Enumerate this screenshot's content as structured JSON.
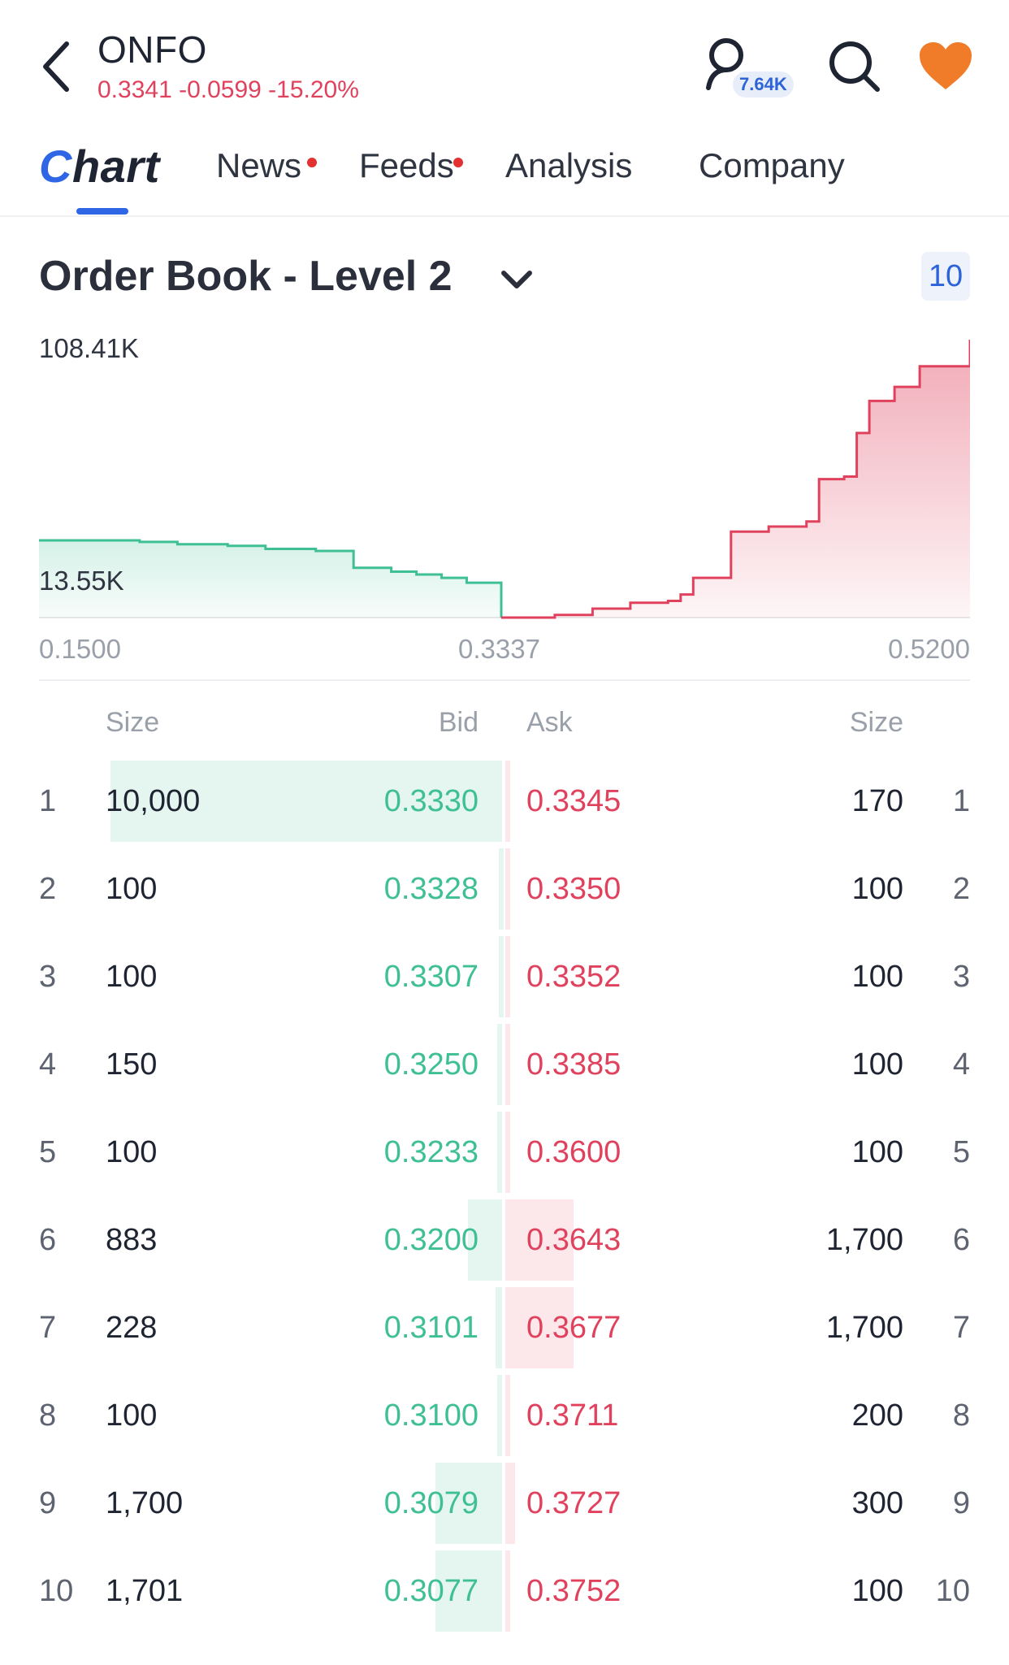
{
  "header": {
    "ticker": "ONFO",
    "quote": "0.3341 -0.0599 -15.20%",
    "follower_count": "7.64K",
    "icons": {
      "back": "chevron-left-icon",
      "follow": "user-icon",
      "search": "search-icon",
      "watchlist": "heart-icon"
    },
    "colors": {
      "negative": "#e0425e",
      "heart": "#f07c2a",
      "accent": "#2f66e6"
    }
  },
  "tabs": [
    {
      "label": "Chart",
      "active": true,
      "dot": false
    },
    {
      "label": "News",
      "active": false,
      "dot": true
    },
    {
      "label": "Feeds",
      "active": false,
      "dot": true
    },
    {
      "label": "Analysis",
      "active": false,
      "dot": false
    },
    {
      "label": "Company",
      "active": false,
      "dot": false
    }
  ],
  "order_book": {
    "title": "Order Book - Level 2",
    "level": "10",
    "headers": {
      "bid_size": "Size",
      "bid": "Bid",
      "ask": "Ask",
      "ask_size": "Size"
    },
    "rows": [
      {
        "n": "1",
        "bid_size": "10,000",
        "bid": "0.3330",
        "ask": "0.3345",
        "ask_size": "170"
      },
      {
        "n": "2",
        "bid_size": "100",
        "bid": "0.3328",
        "ask": "0.3350",
        "ask_size": "100"
      },
      {
        "n": "3",
        "bid_size": "100",
        "bid": "0.3307",
        "ask": "0.3352",
        "ask_size": "100"
      },
      {
        "n": "4",
        "bid_size": "150",
        "bid": "0.3250",
        "ask": "0.3385",
        "ask_size": "100"
      },
      {
        "n": "5",
        "bid_size": "100",
        "bid": "0.3233",
        "ask": "0.3600",
        "ask_size": "100"
      },
      {
        "n": "6",
        "bid_size": "883",
        "bid": "0.3200",
        "ask": "0.3643",
        "ask_size": "1,700"
      },
      {
        "n": "7",
        "bid_size": "228",
        "bid": "0.3101",
        "ask": "0.3677",
        "ask_size": "1,700"
      },
      {
        "n": "8",
        "bid_size": "100",
        "bid": "0.3100",
        "ask": "0.3711",
        "ask_size": "200"
      },
      {
        "n": "9",
        "bid_size": "1,700",
        "bid": "0.3079",
        "ask": "0.3727",
        "ask_size": "300"
      },
      {
        "n": "10",
        "bid_size": "1,701",
        "bid": "0.3077",
        "ask": "0.3752",
        "ask_size": "100"
      }
    ]
  },
  "chart_data": {
    "type": "area",
    "y_max_label": "108.41K",
    "y_mid_label": "13.55K",
    "x_ticks": [
      "0.1500",
      "0.3337",
      "0.5200"
    ],
    "xlim": [
      0.15,
      0.52
    ],
    "ylim": [
      0,
      108410
    ],
    "series": [
      {
        "color": "#3fbf95",
        "x": [
          0.15,
          0.175,
          0.19,
          0.205,
          0.225,
          0.24,
          0.26,
          0.275,
          0.29,
          0.3,
          0.31,
          0.32,
          0.3337
        ],
        "y": [
          30100,
          30100,
          29500,
          28600,
          28000,
          26800,
          26000,
          19400,
          17900,
          16800,
          15500,
          13600,
          0
        ]
      },
      {
        "color": "#e0425e",
        "x": [
          0.3337,
          0.355,
          0.37,
          0.385,
          0.4,
          0.405,
          0.41,
          0.425,
          0.44,
          0.455,
          0.46,
          0.47,
          0.475,
          0.48,
          0.49,
          0.5,
          0.52
        ],
        "y": [
          0,
          1000,
          3500,
          5800,
          6500,
          9000,
          15500,
          33500,
          35500,
          37500,
          54000,
          55000,
          72000,
          84500,
          90000,
          98000,
          108410
        ]
      }
    ]
  }
}
